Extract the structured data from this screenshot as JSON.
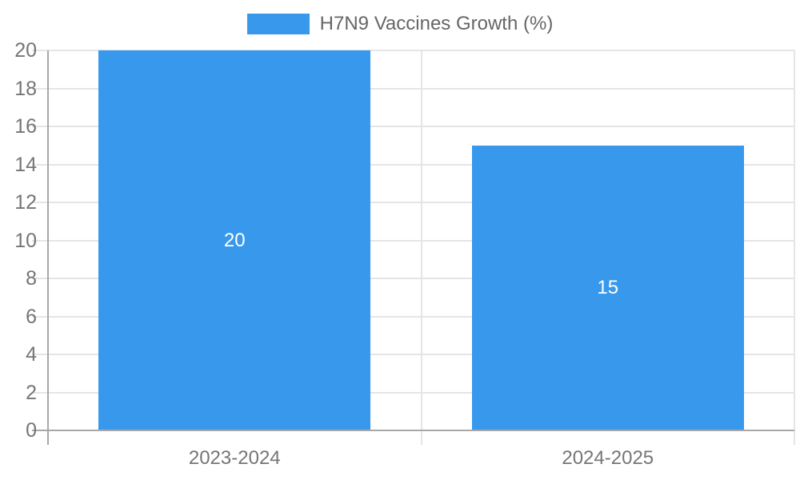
{
  "legend": {
    "label": "H7N9 Vaccines Growth (%)"
  },
  "chart_data": {
    "type": "bar",
    "title": "H7N9 Vaccines Growth (%)",
    "categories": [
      "2023-2024",
      "2024-2025"
    ],
    "values": [
      20,
      15
    ],
    "data_labels": [
      "20",
      "15"
    ],
    "xlabel": "",
    "ylabel": "",
    "ylim": [
      0,
      20
    ],
    "ytick_step": 2,
    "grid": true,
    "legend_position": "top-center",
    "bar_color": "#3898ec"
  },
  "colors": {
    "bar-color": "#3898ec",
    "grid-light": "#e5e5e5",
    "grid-dark": "#a8a8a8",
    "tick-text": "#757575",
    "legend-text": "#666666",
    "bar-label": "#ffffff",
    "bg": "#ffffff"
  }
}
